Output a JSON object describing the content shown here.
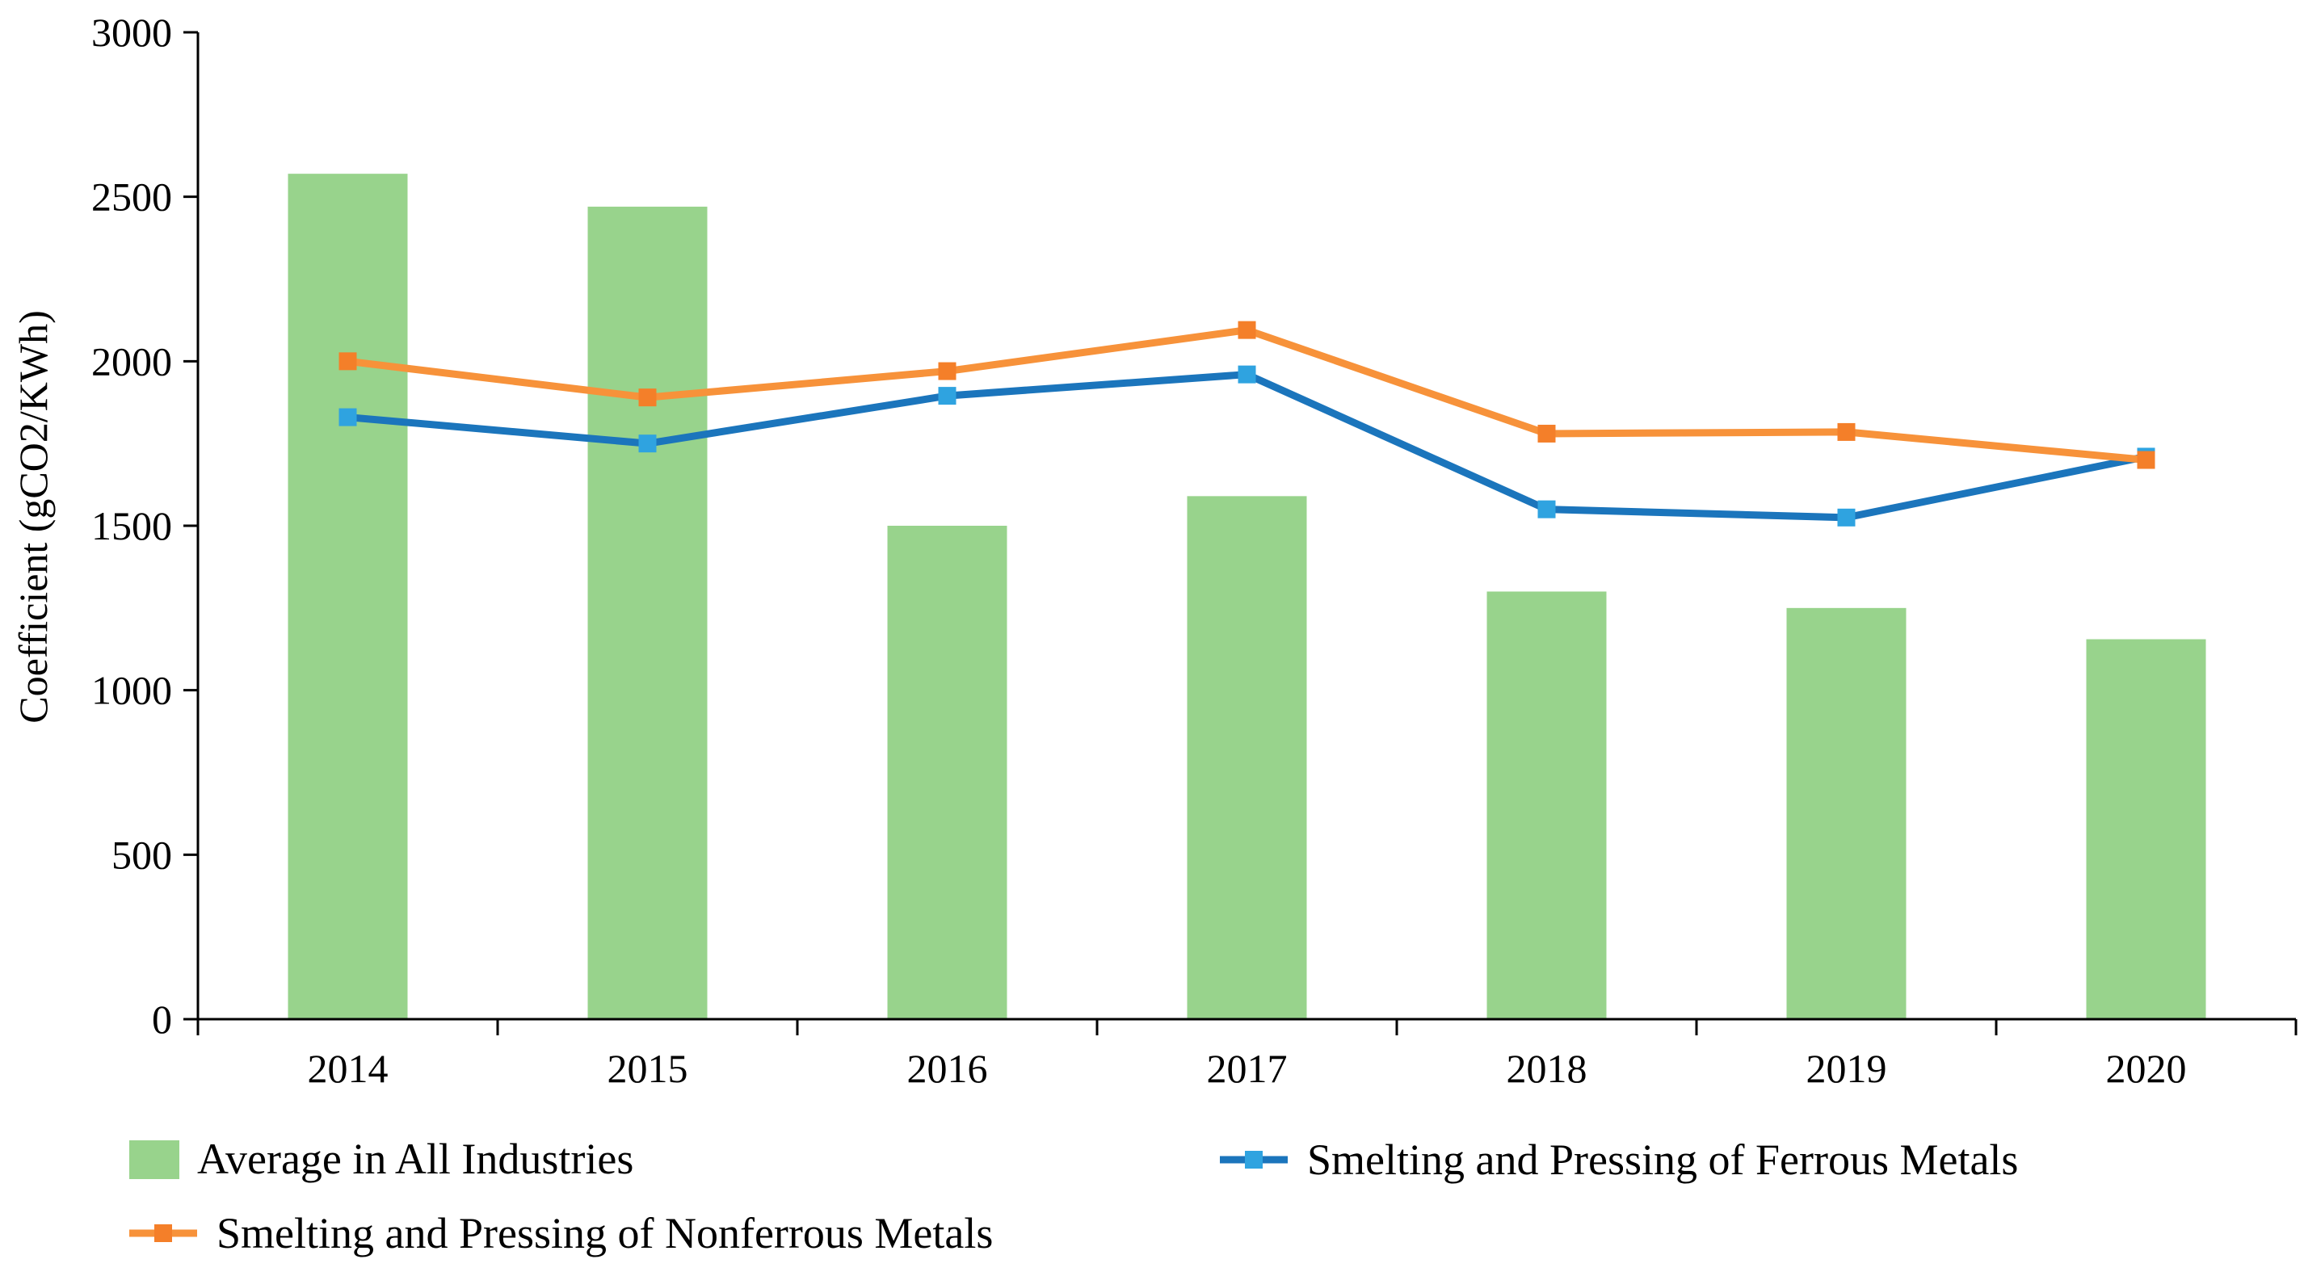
{
  "chart_data": {
    "type": "bar",
    "title": "",
    "xlabel": "",
    "ylabel": "Coefficient (gCO2/KWh)",
    "ylim": [
      0,
      3000
    ],
    "yticks": [
      "0",
      "500",
      "1000",
      "1500",
      "2000",
      "2500",
      "3000"
    ],
    "grid": false,
    "legend_position": "bottom",
    "categories": [
      "2014",
      "2015",
      "2016",
      "2017",
      "2018",
      "2019",
      "2020"
    ],
    "series": [
      {
        "name": "Average in All Industries",
        "kind": "bar",
        "color": "#98D38C",
        "values": [
          2570,
          2470,
          1500,
          1590,
          1300,
          1250,
          1155
        ]
      },
      {
        "name": "Smelting and Pressing of Ferrous Metals",
        "kind": "line",
        "color": "#1B75BC",
        "marker_color": "#2FA3E0",
        "values": [
          1830,
          1750,
          1895,
          1960,
          1550,
          1525,
          1710
        ]
      },
      {
        "name": "Smelting and Pressing of Nonferrous Metals",
        "kind": "line",
        "color": "#F7923A",
        "marker_color": "#F47F29",
        "values": [
          2000,
          1890,
          1970,
          2095,
          1780,
          1785,
          1700
        ]
      }
    ]
  }
}
